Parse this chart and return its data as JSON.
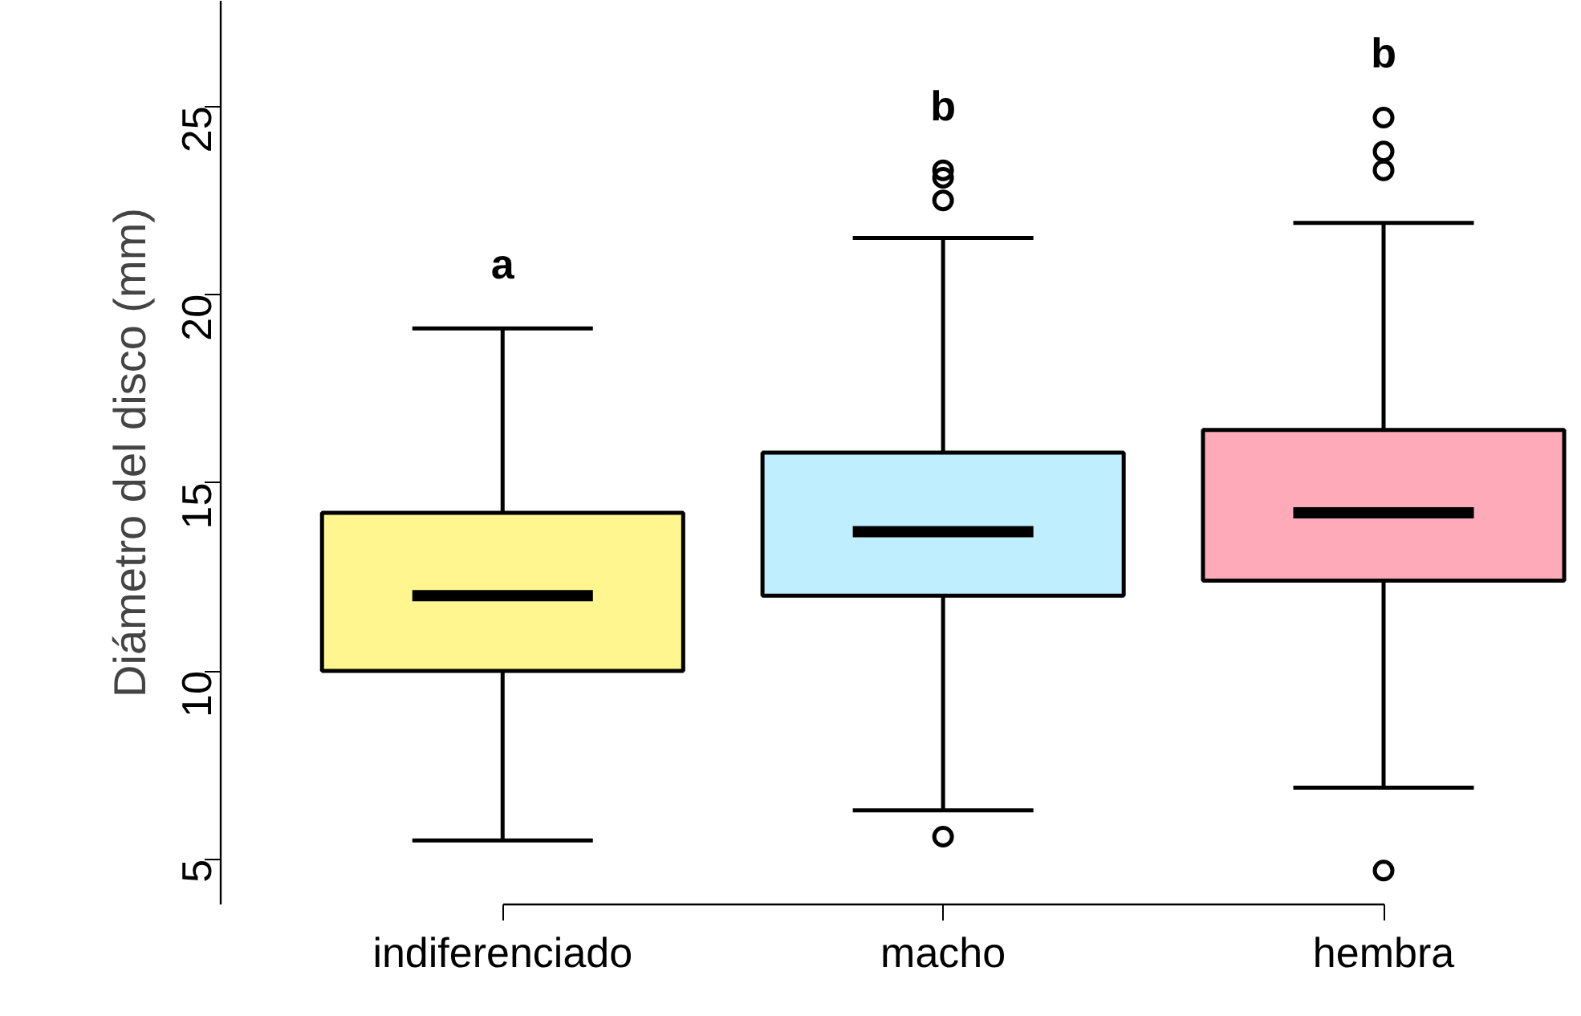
{
  "chart_data": {
    "type": "box",
    "ylabel": "Diámetro del disco (mm)",
    "categories": [
      "indiferenciado",
      "macho",
      "hembra"
    ],
    "colors": [
      "#fff68f",
      "#bfefff",
      "#ffaab8"
    ],
    "boxes": [
      {
        "low": 5.5,
        "q1": 10.0,
        "median": 12.0,
        "q3": 14.2,
        "high": 19.1
      },
      {
        "low": 6.3,
        "q1": 12.0,
        "median": 13.7,
        "q3": 15.8,
        "high": 21.5,
        "outliers": [
          5.6,
          22.5,
          23.1,
          23.3
        ]
      },
      {
        "low": 6.9,
        "q1": 12.4,
        "median": 14.2,
        "q3": 16.4,
        "high": 21.9,
        "outliers": [
          4.7,
          23.3,
          23.8,
          24.7
        ]
      }
    ],
    "ylim": [
      3.8,
      27.8
    ],
    "yticks": [
      5,
      10,
      15,
      20,
      25
    ],
    "annotations": [
      "a",
      "b",
      "b"
    ]
  }
}
